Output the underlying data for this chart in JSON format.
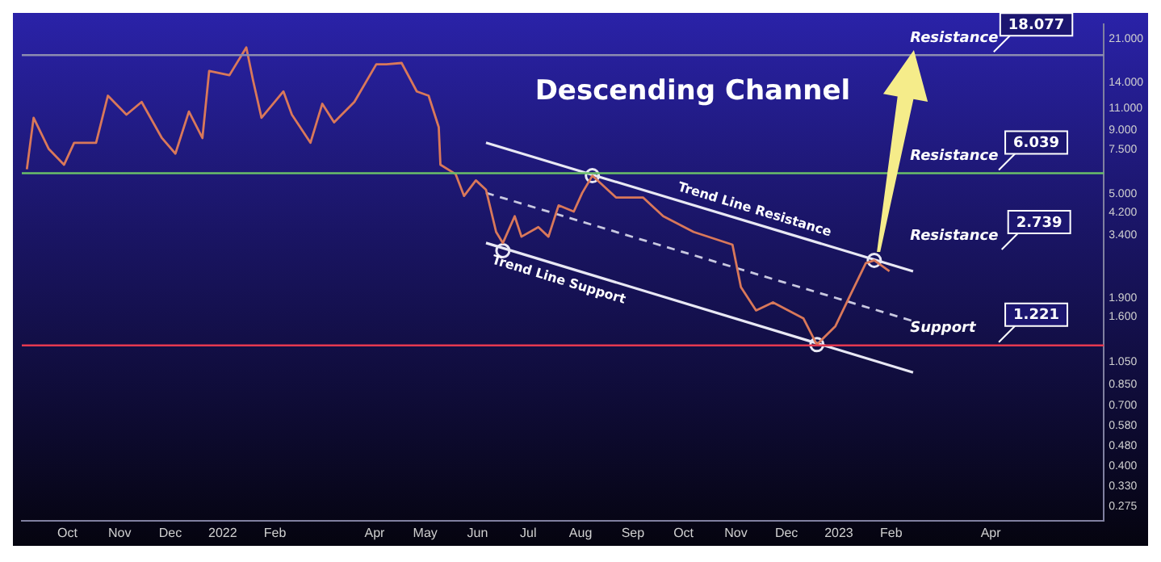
{
  "chart_data": {
    "type": "line",
    "title": "Descending Channel",
    "series": [
      {
        "name": null,
        "color": "#d9785a",
        "x": [
          "2021-09-07",
          "2021-09-11",
          "2021-09-20",
          "2021-09-29",
          "2021-10-05",
          "2021-10-18",
          "2021-10-25",
          "2021-11-05",
          "2021-11-14",
          "2021-11-26",
          "2021-12-04",
          "2021-12-12",
          "2021-12-20",
          "2021-12-24",
          "2022-01-05",
          "2022-01-15",
          "2022-01-19",
          "2022-01-24",
          "2022-02-06",
          "2022-02-11",
          "2022-02-22",
          "2022-03-01",
          "2022-03-08",
          "2022-03-20",
          "2022-04-02",
          "2022-04-08",
          "2022-04-17",
          "2022-04-26",
          "2022-05-03",
          "2022-05-09",
          "2022-05-10",
          "2022-05-19",
          "2022-05-24",
          "2022-05-31",
          "2022-06-06",
          "2022-06-12",
          "2022-06-16",
          "2022-06-23",
          "2022-06-27",
          "2022-07-07",
          "2022-07-13",
          "2022-07-19",
          "2022-07-28",
          "2022-08-02",
          "2022-08-08",
          "2022-08-22",
          "2022-09-07",
          "2022-09-19",
          "2022-10-07",
          "2022-10-30",
          "2022-11-04",
          "2022-11-13",
          "2022-11-23",
          "2022-12-11",
          "2022-12-19",
          "2022-12-30",
          "2023-01-08",
          "2023-01-17",
          "2023-01-22",
          "2023-01-31"
        ],
        "values": [
          6.26,
          10.1,
          7.56,
          6.53,
          8.01,
          8.01,
          12.4,
          10.4,
          11.7,
          8.37,
          7.24,
          10.7,
          8.37,
          15.6,
          15.0,
          19.4,
          14.3,
          10.1,
          12.9,
          10.4,
          8.01,
          11.5,
          9.68,
          11.7,
          16.6,
          16.6,
          16.8,
          12.9,
          12.4,
          9.26,
          6.53,
          5.99,
          4.89,
          5.65,
          5.18,
          3.5,
          3.16,
          4.05,
          3.35,
          3.66,
          3.35,
          4.48,
          4.23,
          5.03,
          5.9,
          4.82,
          4.82,
          4.05,
          3.5,
          3.11,
          2.1,
          1.69,
          1.82,
          1.57,
          1.23,
          1.46,
          1.96,
          2.62,
          2.69,
          2.43
        ]
      },
      {
        "type": "line",
        "name": "Trend Line Resistance",
        "color": "#e8e8f4",
        "x": [
          "2022-06-06",
          "2023-02-14"
        ],
        "values": [
          8.01,
          2.43
        ]
      },
      {
        "type": "line",
        "name": null,
        "color": "#c8c8e0",
        "line_style": "dashed",
        "x": [
          "2022-06-06",
          "2023-02-14"
        ],
        "values": [
          5.03,
          1.53
        ]
      },
      {
        "type": "line",
        "name": "Trend Line Support",
        "color": "#e8e8f4",
        "x": [
          "2022-06-06",
          "2023-02-14"
        ],
        "values": [
          3.16,
          0.95
        ]
      },
      {
        "type": "scatter",
        "name": null,
        "color": "#e8e8f4",
        "marker": "circle",
        "x": [
          "2022-06-16",
          "2022-08-08",
          "2022-12-19",
          "2023-01-22"
        ],
        "values": [
          2.94,
          5.9,
          1.23,
          2.69
        ]
      }
    ],
    "xlim": [
      "2021-09-04",
      "2023-06-07"
    ],
    "xticks": [
      {
        "value": "2021-10-01",
        "label": "Oct"
      },
      {
        "value": "2021-11-01",
        "label": "Nov"
      },
      {
        "value": "2021-12-01",
        "label": "Dec"
      },
      {
        "value": "2022-01-01",
        "label": "2022"
      },
      {
        "value": "2022-02-01",
        "label": "Feb"
      },
      {
        "value": "2022-04-01",
        "label": "Apr"
      },
      {
        "value": "2022-05-01",
        "label": "May"
      },
      {
        "value": "2022-06-01",
        "label": "Jun"
      },
      {
        "value": "2022-07-01",
        "label": "Jul"
      },
      {
        "value": "2022-08-01",
        "label": "Aug"
      },
      {
        "value": "2022-09-01",
        "label": "Sep"
      },
      {
        "value": "2022-10-01",
        "label": "Oct"
      },
      {
        "value": "2022-11-01",
        "label": "Nov"
      },
      {
        "value": "2022-12-01",
        "label": "Dec"
      },
      {
        "value": "2023-01-01",
        "label": "2023"
      },
      {
        "value": "2023-02-01",
        "label": "Feb"
      },
      {
        "value": "2023-04-01",
        "label": "Apr"
      }
    ],
    "log": true,
    "ylim": [
      0.24,
      24
    ],
    "yticks": [
      {
        "value": 21,
        "label": "21.000"
      },
      {
        "value": 14,
        "label": "14.000"
      },
      {
        "value": 11,
        "label": "11.000"
      },
      {
        "value": 9,
        "label": "9.000"
      },
      {
        "value": 7.5,
        "label": "7.500"
      },
      {
        "value": 5,
        "label": "5.000"
      },
      {
        "value": 4.2,
        "label": "4.200"
      },
      {
        "value": 3.4,
        "label": "3.400"
      },
      {
        "value": 1.9,
        "label": "1.900"
      },
      {
        "value": 1.6,
        "label": "1.600"
      },
      {
        "value": 1.05,
        "label": "1.050"
      },
      {
        "value": 0.85,
        "label": "0.850"
      },
      {
        "value": 0.7,
        "label": "0.700"
      },
      {
        "value": 0.58,
        "label": "0.580"
      },
      {
        "value": 0.48,
        "label": "0.480"
      },
      {
        "value": 0.4,
        "label": "0.400"
      },
      {
        "value": 0.33,
        "label": "0.330"
      },
      {
        "value": 0.275,
        "label": "0.275"
      }
    ],
    "ref_lines": [
      {
        "axis": "y",
        "value": 18.077,
        "label": "Resistance",
        "color": "#8c8cb0"
      },
      {
        "axis": "y",
        "value": 6.039,
        "label": "Resistance",
        "color": "#6abf69"
      },
      {
        "axis": "y",
        "value": 1.221,
        "label": "Support",
        "color": "#e53950"
      }
    ],
    "annotations": [
      {
        "text": "18.077",
        "x": "2023-04-28",
        "y": 18.077
      },
      {
        "text": "6.039",
        "x": "2023-04-28",
        "y": 6.039
      },
      "Resistance",
      "2.739",
      {
        "text": "1.221",
        "x": "2023-04-28",
        "y": 1.221
      }
    ],
    "grid": false,
    "legend": false
  }
}
